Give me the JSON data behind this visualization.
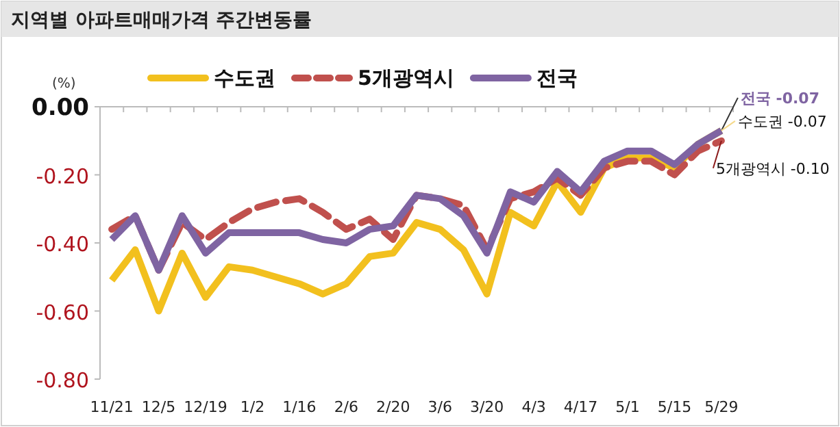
{
  "chart_data": {
    "type": "line",
    "title": "지역별 아파트매매가격 주간변동률",
    "ylabel": "(%)",
    "categories": [
      "11/21",
      null,
      "12/5",
      null,
      "12/19",
      null,
      "1/2",
      null,
      "1/16",
      null,
      "2/6",
      null,
      "2/20",
      null,
      "3/6",
      null,
      "3/20",
      null,
      "4/3",
      null,
      "4/17",
      null,
      "5/1",
      null,
      "5/15",
      null,
      "5/29"
    ],
    "series": [
      {
        "name": "수도권",
        "color": "#f2c01e",
        "line_style": "solid",
        "values": [
          -0.51,
          -0.42,
          -0.6,
          -0.43,
          -0.56,
          -0.47,
          -0.48,
          -0.5,
          -0.52,
          -0.55,
          -0.52,
          -0.44,
          -0.43,
          -0.34,
          -0.36,
          -0.42,
          -0.55,
          -0.31,
          -0.35,
          -0.22,
          -0.31,
          -0.18,
          -0.15,
          -0.15,
          -0.18,
          -0.11,
          -0.07
        ]
      },
      {
        "name": "5개광역시",
        "color": "#c0504d",
        "line_style": "dashed",
        "values": [
          -0.36,
          -0.32,
          -0.48,
          -0.34,
          -0.39,
          -0.34,
          -0.3,
          -0.28,
          -0.27,
          -0.31,
          -0.36,
          -0.33,
          -0.39,
          -0.26,
          -0.27,
          -0.29,
          -0.42,
          -0.27,
          -0.25,
          -0.21,
          -0.26,
          -0.18,
          -0.16,
          -0.16,
          -0.2,
          -0.13,
          -0.1
        ]
      },
      {
        "name": "전국",
        "color": "#7f64a2",
        "line_style": "solid",
        "values": [
          -0.39,
          -0.32,
          -0.48,
          -0.32,
          -0.43,
          -0.37,
          -0.37,
          -0.37,
          -0.37,
          -0.39,
          -0.4,
          -0.36,
          -0.35,
          -0.26,
          -0.27,
          -0.32,
          -0.43,
          -0.25,
          -0.28,
          -0.19,
          -0.25,
          -0.16,
          -0.13,
          -0.13,
          -0.17,
          -0.11,
          -0.07
        ]
      }
    ],
    "ylim": [
      -0.8,
      0
    ],
    "yticks": [
      {
        "value": 0,
        "label": "0.00"
      },
      {
        "value": -0.2,
        "label": "-0.20"
      },
      {
        "value": -0.4,
        "label": "-0.40"
      },
      {
        "value": -0.6,
        "label": "-0.60"
      },
      {
        "value": -0.8,
        "label": "-0.80"
      }
    ],
    "legend": "top",
    "marker": "none",
    "annotations": [
      {
        "text": "전국 -0.07",
        "x": "5/29",
        "y": -0.07
      },
      {
        "text": "수도권 -0.07",
        "x": "5/29",
        "y": -0.07
      },
      {
        "text": "5개광역시 -0.10",
        "x": "5/29",
        "y": -0.1
      }
    ]
  }
}
